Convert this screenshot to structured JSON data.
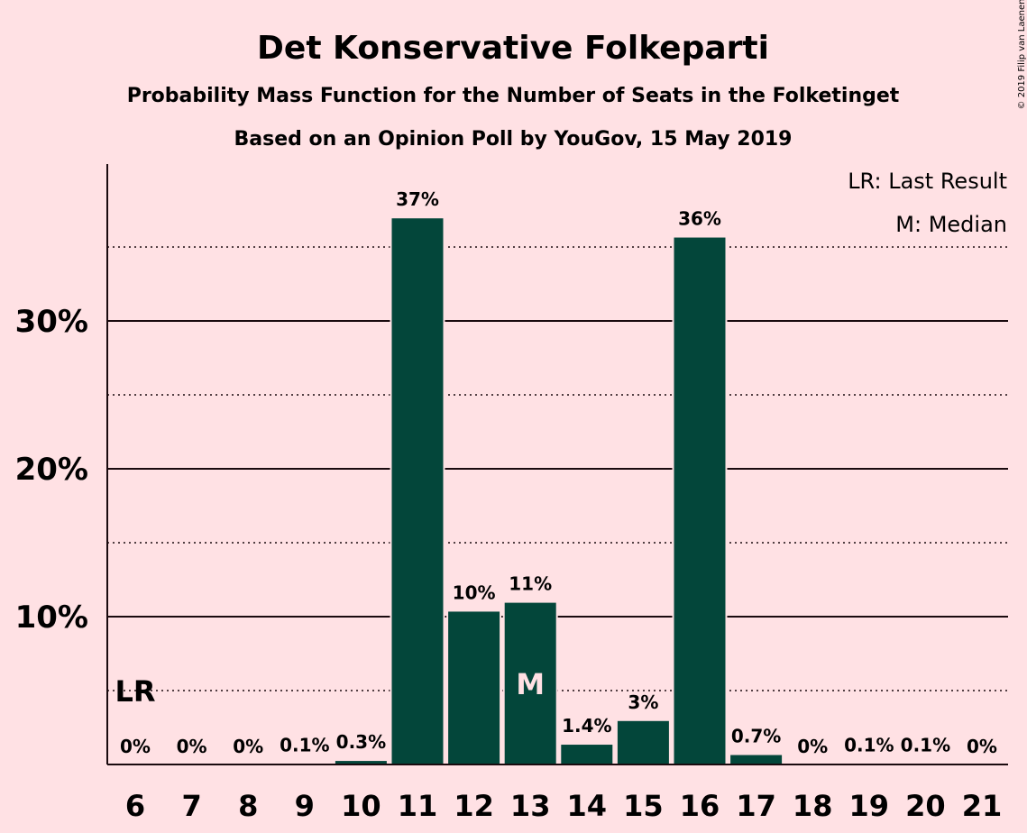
{
  "chart_data": {
    "type": "bar",
    "title": "Det Konservative Folkeparti",
    "subtitle": "Probability Mass Function for the Number of Seats in the Folketinget",
    "subtitle2": "Based on an Opinion Poll by YouGov, 15 May 2019",
    "copyright": "© 2019 Filip van Laenen",
    "legend": [
      "LR: Last Result",
      "M: Median"
    ],
    "xlabel": "",
    "ylabel": "",
    "categories": [
      "6",
      "7",
      "8",
      "9",
      "10",
      "11",
      "12",
      "13",
      "14",
      "15",
      "16",
      "17",
      "18",
      "19",
      "20",
      "21"
    ],
    "values": [
      0,
      0,
      0,
      0.1,
      0.3,
      37,
      10.4,
      11,
      1.4,
      3,
      35.7,
      0.7,
      0,
      0.1,
      0.1,
      0
    ],
    "labels": [
      "0%",
      "0%",
      "0%",
      "0.1%",
      "0.3%",
      "37%",
      "10%",
      "11%",
      "1.4%",
      "3%",
      "36%",
      "0.7%",
      "0%",
      "0.1%",
      "0.1%",
      "0%"
    ],
    "ylim": [
      0,
      40
    ],
    "yticks": [
      10,
      20,
      30
    ],
    "ytick_labels": [
      "10%",
      "20%",
      "30%"
    ],
    "minor_gridlines": [
      5,
      15,
      25,
      35
    ],
    "last_result": {
      "category": "6",
      "label": "LR"
    },
    "median": {
      "category": "13",
      "label": "M"
    },
    "colors": {
      "bar": "#03463A",
      "background": "#FFE1E4",
      "text": "#1A0A0E"
    }
  }
}
